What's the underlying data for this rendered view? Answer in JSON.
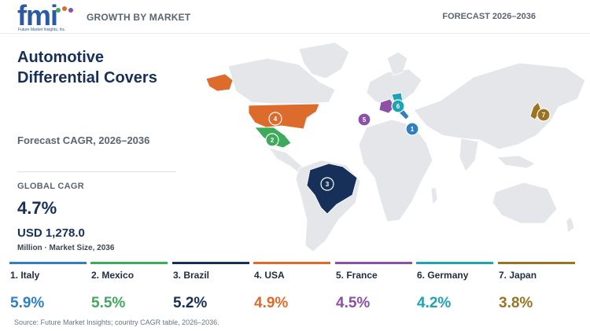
{
  "header": {
    "logo_word": "fmi",
    "logo_tag": "Future Market Insights, Inc.",
    "left_label": "GROWTH BY MARKET",
    "right_label": "FORECAST 2026–2036"
  },
  "title": "Automotive Differential Covers",
  "subtitle": "Forecast CAGR, 2026–2036",
  "global": {
    "cagr_label": "GLOBAL CAGR",
    "cagr_value": "4.7%",
    "market_value": "USD 1,278.0",
    "market_label": "Million · Market Size, 2036"
  },
  "colors": {
    "italy": "#2f7fc1",
    "mexico": "#3daa5c",
    "brazil": "#16305a",
    "usa": "#dd6b2b",
    "france": "#8e4fa6",
    "germany": "#1fa3b3",
    "japan": "#9a7420",
    "land": "#e4e6e9"
  },
  "chart_data": {
    "type": "table",
    "title": "Automotive Differential Covers",
    "subtitle": "Forecast CAGR, 2026–2036",
    "categories": [
      "Italy",
      "Mexico",
      "Brazil",
      "USA",
      "France",
      "Germany",
      "Japan"
    ],
    "values": [
      5.9,
      5.5,
      5.2,
      4.9,
      4.5,
      4.2,
      3.8
    ],
    "unit": "%",
    "global_cagr": 4.7,
    "market_size_2036_usd_million": 1278.0
  },
  "countries": [
    {
      "rank": "1",
      "name": "1. Italy",
      "value": "5.9%",
      "color": "#2f7fc1"
    },
    {
      "rank": "2",
      "name": "2. Mexico",
      "value": "5.5%",
      "color": "#3daa5c"
    },
    {
      "rank": "3",
      "name": "3. Brazil",
      "value": "5.2%",
      "color": "#16305a"
    },
    {
      "rank": "4",
      "name": "4. USA",
      "value": "4.9%",
      "color": "#dd6b2b"
    },
    {
      "rank": "5",
      "name": "5. France",
      "value": "4.5%",
      "color": "#8e4fa6"
    },
    {
      "rank": "6",
      "name": "6. Germany",
      "value": "4.2%",
      "color": "#1fa3b3"
    },
    {
      "rank": "7",
      "name": "7. Japan",
      "value": "3.8%",
      "color": "#9a7420"
    }
  ],
  "source": "Source: Future Market Insights; country CAGR table, 2026–2036."
}
